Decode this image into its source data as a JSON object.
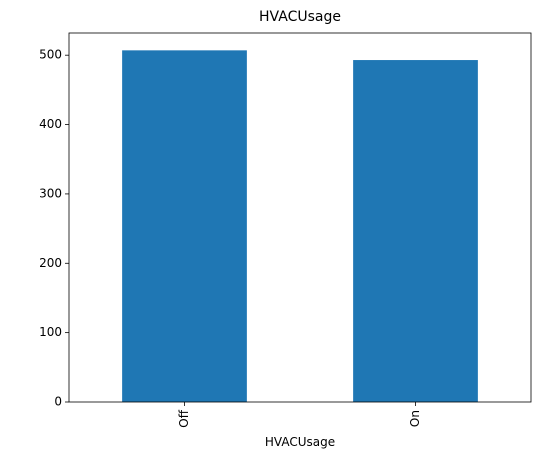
{
  "chart_data": {
    "type": "bar",
    "title": "HVACUsage",
    "x_label": "HVACUsage",
    "categories": [
      "Off",
      "On"
    ],
    "values": [
      507,
      493
    ],
    "color": "#1f77b4",
    "ylim": [
      0,
      532
    ],
    "yticks": [
      0,
      100,
      200,
      300,
      400,
      500
    ],
    "grid": false
  }
}
